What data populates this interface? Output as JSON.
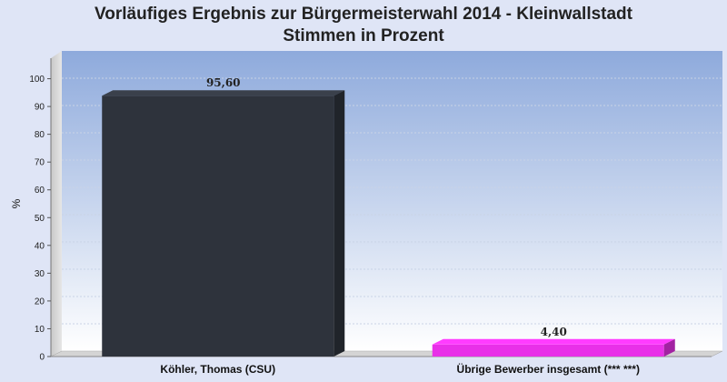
{
  "chart_data": {
    "type": "bar",
    "title": "Vorläufiges Ergebnis zur Bürgermeisterwahl 2014 - Kleinwallstadt",
    "subtitle": "Stimmen in Prozent",
    "xlabel": "",
    "ylabel": "%",
    "categories": [
      "Köhler, Thomas (CSU)",
      "Übrige Bewerber insgesamt (***  ***)"
    ],
    "values": [
      95.6,
      4.4
    ],
    "value_labels": [
      "95,60",
      "4,40"
    ],
    "colors": [
      "#2e333c",
      "#e830e8"
    ],
    "ylim": [
      0,
      110
    ],
    "yticks": [
      0,
      10,
      20,
      30,
      40,
      50,
      60,
      70,
      80,
      90,
      100
    ],
    "grid": true,
    "legend": "none"
  }
}
